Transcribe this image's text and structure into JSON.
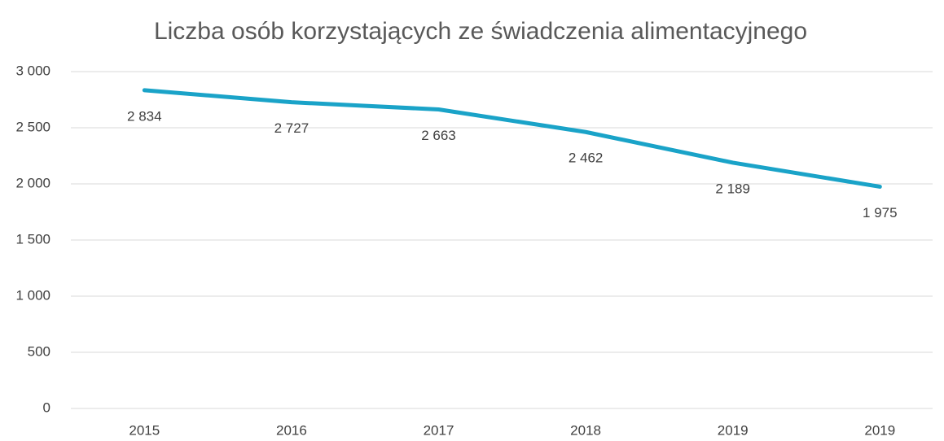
{
  "chart_data": {
    "type": "line",
    "title": "Liczba osób korzystających ze świadczenia alimentacyjnego",
    "categories": [
      "2015",
      "2016",
      "2017",
      "2018",
      "2019",
      "2019"
    ],
    "series": [
      {
        "color": "#1aa3c8",
        "values": [
          2834,
          2727,
          2663,
          2462,
          2189,
          1975
        ],
        "value_labels": [
          "2 834",
          "2 727",
          "2 663",
          "2 462",
          "2 189",
          "1 975"
        ]
      }
    ],
    "ylim": [
      0,
      3000
    ],
    "yticks": [
      0,
      500,
      {
        "value": 1000,
        "label": "1 000"
      },
      {
        "value": 1500,
        "label": "1 500"
      },
      {
        "value": 2000,
        "label": "2 000"
      },
      {
        "value": 2500,
        "label": "2 500"
      },
      {
        "value": 3000,
        "label": "3 000"
      }
    ],
    "grid": true
  }
}
